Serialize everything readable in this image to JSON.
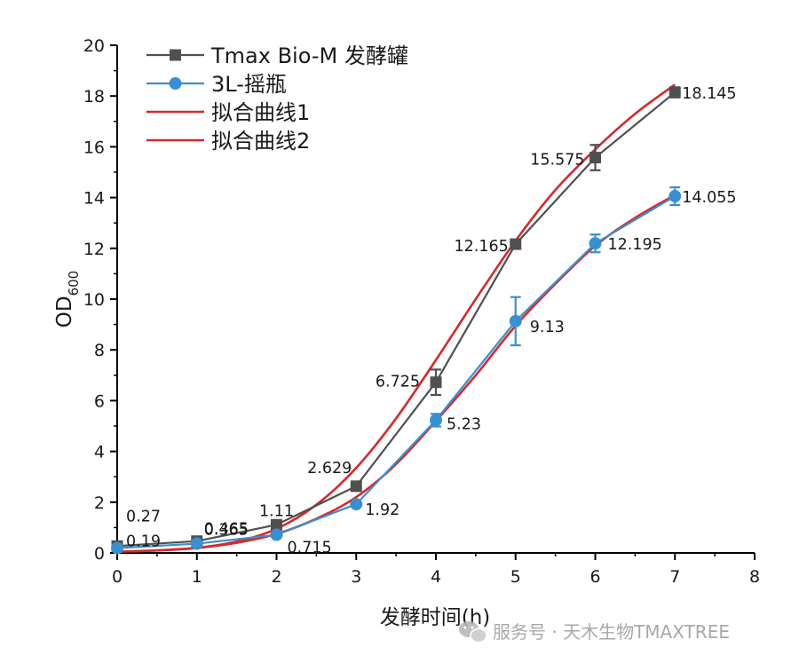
{
  "chart_data": {
    "type": "line",
    "xlabel": "发酵时间(h)",
    "ylabel_main": "OD",
    "ylabel_sub": "600",
    "xlim": [
      0,
      8
    ],
    "ylim": [
      0,
      20
    ],
    "x_ticks": [
      0,
      1,
      2,
      3,
      4,
      5,
      6,
      7,
      8
    ],
    "y_ticks": [
      0,
      2,
      4,
      6,
      8,
      10,
      12,
      14,
      16,
      18,
      20
    ],
    "grid": false,
    "legend_position": "top-left",
    "series": [
      {
        "name": "Tmax Bio-M 发酵罐",
        "marker": "square",
        "color": "#505050",
        "x": [
          0,
          1,
          2,
          3,
          4,
          5,
          6,
          7
        ],
        "y": [
          0.27,
          0.465,
          1.11,
          2.629,
          6.725,
          12.165,
          15.575,
          18.145
        ],
        "error": [
          0.1,
          0.1,
          0.1,
          0.1,
          0.5,
          0.15,
          0.5,
          0.2
        ],
        "labels": [
          "0.27",
          "0.465",
          "1.11",
          "2.629",
          "6.725",
          "12.165",
          "15.575",
          "18.145"
        ]
      },
      {
        "name": "3L-摇瓶",
        "marker": "circle",
        "color": "#3a8fd0",
        "x": [
          0,
          1,
          2,
          3,
          4,
          5,
          6,
          7
        ],
        "y": [
          0.19,
          0.365,
          0.715,
          1.92,
          5.23,
          9.13,
          12.195,
          14.055
        ],
        "error": [
          0.1,
          0.1,
          0.1,
          0.1,
          0.25,
          0.95,
          0.35,
          0.35
        ],
        "labels": [
          "0.19",
          "0.365",
          "0.715",
          "1.92",
          "5.23",
          "9.13",
          "12.195",
          "14.055"
        ]
      },
      {
        "name": "拟合曲线1",
        "type": "fit",
        "color": "#d42a2a",
        "x": [
          0,
          0.5,
          1,
          1.5,
          2,
          2.5,
          3,
          3.5,
          4,
          4.5,
          5,
          5.5,
          6,
          6.5,
          7
        ],
        "y": [
          0.05,
          0.1,
          0.2,
          0.45,
          0.95,
          1.9,
          3.35,
          5.3,
          7.6,
          10.0,
          12.3,
          14.3,
          15.9,
          17.3,
          18.45
        ]
      },
      {
        "name": "拟合曲线2",
        "type": "fit",
        "color": "#d42a2a",
        "x": [
          0,
          0.5,
          1,
          1.5,
          2,
          2.5,
          3,
          3.5,
          4,
          4.5,
          5,
          5.5,
          6,
          6.5,
          7
        ],
        "y": [
          0.05,
          0.1,
          0.2,
          0.4,
          0.75,
          1.35,
          2.2,
          3.5,
          5.2,
          7.0,
          8.95,
          10.6,
          12.1,
          13.2,
          14.1
        ]
      }
    ]
  },
  "watermark": {
    "text": "服务号 · 天木生物TMAXTREE",
    "icon": "wechat-icon"
  }
}
